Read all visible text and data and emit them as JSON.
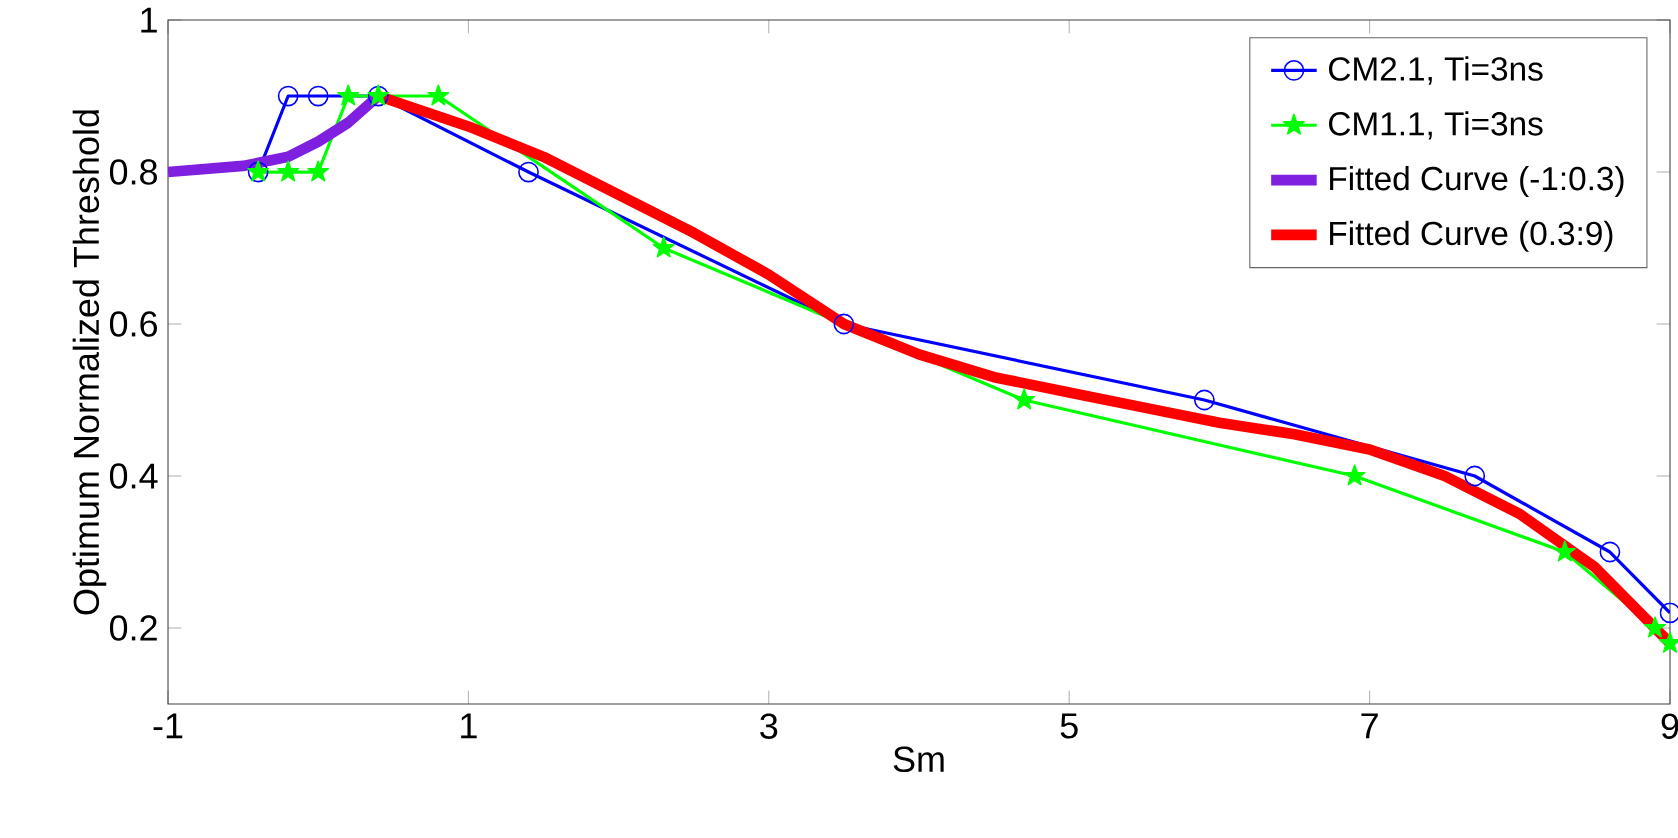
{
  "chart_data": {
    "type": "line",
    "xlabel": "Sm",
    "ylabel": "Optimum Normalized Threshold",
    "xlim": [
      -1,
      9
    ],
    "ylim": [
      0.1,
      1
    ],
    "xticks": [
      -1,
      1,
      3,
      5,
      7,
      9
    ],
    "yticks": [
      0.2,
      0.4,
      0.6,
      0.8,
      1
    ],
    "grid": false,
    "legend": "top right",
    "line_style": "solid",
    "series": [
      {
        "name": "CM2.1, Ti=3ns",
        "color": "#0000ff",
        "marker": "circle",
        "x": [
          -0.4,
          -0.2,
          0,
          0.4,
          1.4,
          3.5,
          5.9,
          7.7,
          8.6,
          9
        ],
        "values": [
          0.8,
          0.9,
          0.9,
          0.9,
          0.8,
          0.6,
          0.5,
          0.4,
          0.3,
          0.22
        ]
      },
      {
        "name": "CM1.1, Ti=3ns",
        "color": "#00ff00",
        "marker": "star",
        "x": [
          -0.4,
          -0.2,
          0,
          0.2,
          0.4,
          0.8,
          2.3,
          4.7,
          6.9,
          8.3,
          8.9,
          9
        ],
        "values": [
          0.8,
          0.8,
          0.8,
          0.9,
          0.9,
          0.9,
          0.7,
          0.5,
          0.4,
          0.3,
          0.2,
          0.18
        ]
      },
      {
        "name": "Fitted Curve (-1:0.3)",
        "color": "#7f1fdf",
        "marker": "none",
        "x": [
          -1,
          -0.5,
          -0.2,
          0,
          0.2,
          0.4
        ],
        "values": [
          0.8,
          0.808,
          0.82,
          0.84,
          0.865,
          0.9
        ]
      },
      {
        "name": "Fitted Curve (0.3:9)",
        "color": "#ff0000",
        "marker": "none",
        "x": [
          0.4,
          1,
          1.5,
          2,
          2.5,
          3,
          3.5,
          4,
          4.5,
          5,
          5.5,
          6,
          6.5,
          7,
          7.5,
          8,
          8.5,
          9
        ],
        "values": [
          0.9,
          0.86,
          0.82,
          0.77,
          0.72,
          0.665,
          0.6,
          0.56,
          0.53,
          0.51,
          0.49,
          0.47,
          0.455,
          0.435,
          0.4,
          0.35,
          0.28,
          0.18
        ]
      }
    ]
  }
}
